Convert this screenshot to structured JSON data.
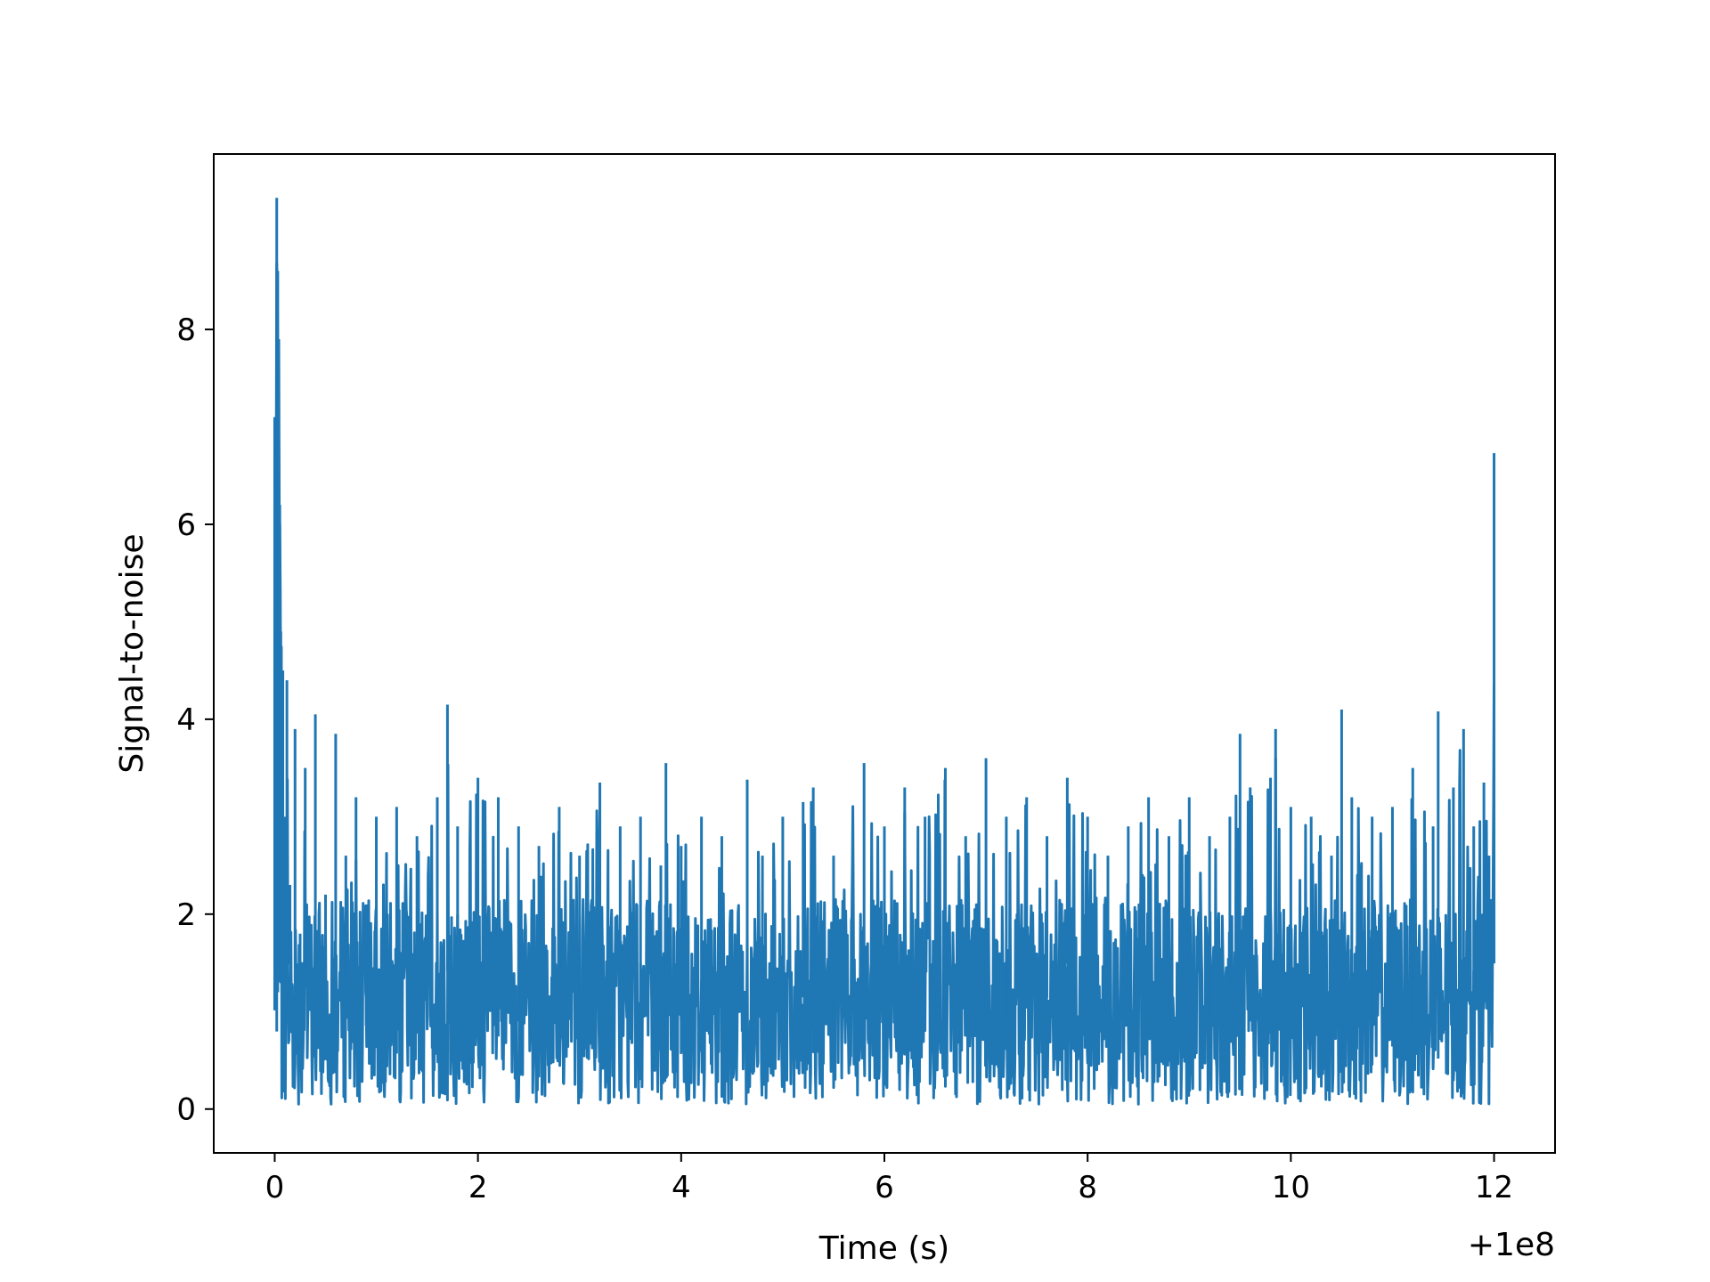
{
  "chart_data": {
    "type": "line",
    "title": "",
    "xlabel": "Time (s)",
    "ylabel": "Signal-to-noise",
    "x_offset_label": "+1e8",
    "xlim": [
      -0.6,
      12.6
    ],
    "ylim": [
      -0.45,
      9.8
    ],
    "x_ticks": [
      0,
      2,
      4,
      6,
      8,
      10,
      12
    ],
    "x_tick_labels": [
      "0",
      "2",
      "4",
      "6",
      "8",
      "10",
      "12"
    ],
    "y_ticks": [
      0,
      2,
      4,
      6,
      8
    ],
    "y_tick_labels": [
      "0",
      "2",
      "4",
      "6",
      "8"
    ],
    "grid": false,
    "legend": "none",
    "line_color": "#1f77b4",
    "series": [
      {
        "x": [
          0.0,
          0.01,
          0.02,
          0.03,
          0.04,
          0.05,
          0.06,
          0.08,
          0.1,
          0.12,
          0.15,
          0.2,
          0.25,
          0.3,
          0.4,
          0.5,
          0.6,
          0.7,
          0.8,
          0.9,
          1.0,
          1.2,
          1.4,
          1.6,
          1.7,
          1.8,
          2.0,
          2.2,
          2.4,
          2.6,
          2.8,
          3.0,
          3.2,
          3.4,
          3.6,
          3.8,
          3.85,
          4.0,
          4.2,
          4.4,
          4.65,
          4.8,
          5.0,
          5.2,
          5.3,
          5.5,
          5.8,
          6.0,
          6.2,
          6.4,
          6.6,
          6.8,
          7.0,
          7.2,
          7.4,
          7.6,
          7.8,
          8.0,
          8.2,
          8.4,
          8.6,
          8.8,
          9.0,
          9.2,
          9.4,
          9.5,
          9.6,
          9.8,
          9.85,
          10.0,
          10.2,
          10.4,
          10.5,
          10.6,
          10.8,
          11.0,
          11.2,
          11.4,
          11.45,
          11.6,
          11.7,
          11.8,
          11.9,
          11.95,
          11.98,
          12.0
        ],
        "y": [
          7.1,
          6.1,
          9.35,
          8.6,
          7.9,
          6.2,
          4.9,
          4.5,
          3.0,
          4.4,
          2.3,
          3.9,
          1.8,
          3.5,
          4.05,
          2.2,
          3.85,
          2.6,
          3.2,
          2.1,
          3.0,
          3.1,
          2.8,
          3.2,
          4.15,
          2.9,
          3.4,
          3.2,
          2.9,
          2.7,
          3.1,
          2.6,
          3.35,
          2.9,
          3.0,
          2.5,
          3.55,
          2.7,
          3.0,
          2.8,
          3.38,
          2.6,
          3.0,
          3.15,
          3.3,
          2.6,
          3.55,
          2.9,
          3.3,
          3.0,
          3.5,
          2.8,
          3.6,
          3.0,
          3.2,
          2.8,
          3.4,
          3.0,
          2.6,
          2.9,
          3.2,
          2.8,
          3.2,
          2.8,
          3.0,
          3.85,
          3.3,
          3.4,
          3.9,
          3.1,
          3.0,
          2.6,
          4.1,
          3.2,
          3.0,
          3.1,
          3.5,
          2.9,
          4.08,
          3.3,
          3.9,
          2.9,
          3.35,
          2.6,
          1.9,
          6.73
        ]
      }
    ]
  }
}
